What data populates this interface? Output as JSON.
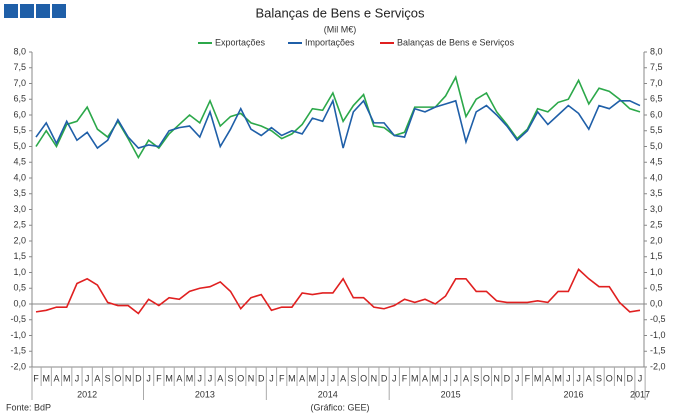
{
  "chart_data": {
    "type": "line",
    "title": "Balanças de Bens e Serviços",
    "subtitle": "(Mil M€)",
    "source": "Fonte: BdP",
    "credit": "(Gráfico: GEE)",
    "groups": [
      {
        "label": "2012",
        "categories": [
          "F",
          "M",
          "A",
          "M",
          "J",
          "J",
          "A",
          "S",
          "O",
          "N",
          "D"
        ]
      },
      {
        "label": "2013",
        "categories": [
          "J",
          "F",
          "M",
          "A",
          "M",
          "J",
          "J",
          "A",
          "S",
          "O",
          "N",
          "D"
        ]
      },
      {
        "label": "2014",
        "categories": [
          "J",
          "F",
          "M",
          "A",
          "M",
          "J",
          "J",
          "A",
          "S",
          "O",
          "N",
          "D"
        ]
      },
      {
        "label": "2015",
        "categories": [
          "J",
          "F",
          "M",
          "A",
          "M",
          "J",
          "J",
          "A",
          "S",
          "O",
          "N",
          "D"
        ]
      },
      {
        "label": "2016",
        "categories": [
          "J",
          "F",
          "M",
          "A",
          "M",
          "J",
          "J",
          "A",
          "S",
          "O",
          "N",
          "D"
        ]
      },
      {
        "label": "2017",
        "categories": [
          "J"
        ]
      }
    ],
    "series": [
      {
        "name": "Exportações",
        "color": "#2ca84a",
        "values": [
          5.0,
          5.5,
          5.0,
          5.7,
          5.8,
          6.25,
          5.55,
          5.3,
          5.8,
          5.25,
          4.65,
          5.2,
          4.95,
          5.4,
          5.7,
          6.0,
          5.75,
          6.45,
          5.65,
          5.95,
          6.05,
          5.75,
          5.65,
          5.5,
          5.25,
          5.4,
          5.7,
          6.2,
          6.15,
          6.7,
          5.8,
          6.3,
          6.65,
          5.65,
          5.6,
          5.35,
          5.45,
          6.25,
          6.25,
          6.25,
          6.6,
          7.2,
          5.95,
          6.5,
          6.7,
          6.1,
          5.7,
          5.25,
          5.55,
          6.2,
          6.1,
          6.4,
          6.5,
          7.1,
          6.35,
          6.85,
          6.75,
          6.5,
          6.2,
          6.1
        ]
      },
      {
        "name": "Importações",
        "color": "#1f5fa8",
        "values": [
          5.3,
          5.75,
          5.1,
          5.8,
          5.2,
          5.45,
          4.95,
          5.2,
          5.85,
          5.3,
          4.95,
          5.05,
          5.0,
          5.5,
          5.6,
          5.65,
          5.3,
          6.1,
          5.0,
          5.55,
          6.2,
          5.55,
          5.35,
          5.6,
          5.35,
          5.5,
          5.4,
          5.9,
          5.8,
          6.45,
          4.95,
          6.1,
          6.45,
          5.75,
          5.75,
          5.35,
          5.3,
          6.2,
          6.1,
          6.25,
          6.35,
          6.45,
          5.15,
          6.1,
          6.3,
          6.0,
          5.65,
          5.2,
          5.5,
          6.1,
          5.7,
          6.0,
          6.3,
          6.05,
          5.55,
          6.3,
          6.2,
          6.45,
          6.45,
          6.3
        ]
      },
      {
        "name": "Balanças de Bens e Serviços",
        "color": "#e02020",
        "values": [
          -0.25,
          -0.2,
          -0.1,
          -0.1,
          0.65,
          0.8,
          0.6,
          0.05,
          -0.05,
          -0.05,
          -0.3,
          0.15,
          -0.05,
          0.2,
          0.15,
          0.4,
          0.5,
          0.55,
          0.7,
          0.4,
          -0.15,
          0.2,
          0.3,
          -0.2,
          -0.1,
          -0.1,
          0.35,
          0.3,
          0.35,
          0.35,
          0.8,
          0.2,
          0.2,
          -0.1,
          -0.15,
          -0.05,
          0.15,
          0.05,
          0.15,
          0.0,
          0.25,
          0.8,
          0.8,
          0.4,
          0.4,
          0.1,
          0.05,
          0.05,
          0.05,
          0.1,
          0.05,
          0.4,
          0.4,
          1.1,
          0.8,
          0.55,
          0.55,
          0.05,
          -0.25,
          -0.2
        ]
      }
    ],
    "ylim": [
      -2,
      8
    ],
    "yticks": [
      {
        "value": -2,
        "label": "-2,0"
      },
      {
        "value": -1.5,
        "label": "-1,5"
      },
      {
        "value": -1,
        "label": "-1,0"
      },
      {
        "value": -0.5,
        "label": "-0,5"
      },
      {
        "value": 0,
        "label": "0,0"
      },
      {
        "value": 0.5,
        "label": "0,5"
      },
      {
        "value": 1,
        "label": "1,0"
      },
      {
        "value": 1.5,
        "label": "1,5"
      },
      {
        "value": 2,
        "label": "2,0"
      },
      {
        "value": 2.5,
        "label": "2,5"
      },
      {
        "value": 3,
        "label": "3,0"
      },
      {
        "value": 3.5,
        "label": "3,5"
      },
      {
        "value": 4,
        "label": "4,0"
      },
      {
        "value": 4.5,
        "label": "4,5"
      },
      {
        "value": 5,
        "label": "5,0"
      },
      {
        "value": 5.5,
        "label": "5,5"
      },
      {
        "value": 6,
        "label": "6,0"
      },
      {
        "value": 6.5,
        "label": "6,5"
      },
      {
        "value": 7,
        "label": "7,0"
      },
      {
        "value": 7.5,
        "label": "7,5"
      },
      {
        "value": 8,
        "label": "8,0"
      }
    ],
    "y2lim": [
      -2,
      8
    ],
    "y2ticks": [
      {
        "value": -2,
        "label": "-2,0"
      },
      {
        "value": -1.5,
        "label": "-1,5"
      },
      {
        "value": -1,
        "label": "-1,0"
      },
      {
        "value": -0.5,
        "label": "-0,5"
      },
      {
        "value": 0,
        "label": "0,0"
      },
      {
        "value": 0.5,
        "label": "0,5"
      },
      {
        "value": 1,
        "label": "1,0"
      },
      {
        "value": 1.5,
        "label": "1,5"
      },
      {
        "value": 2,
        "label": "2,0"
      },
      {
        "value": 2.5,
        "label": "2,5"
      },
      {
        "value": 3,
        "label": "3,0"
      },
      {
        "value": 3.5,
        "label": "3,5"
      },
      {
        "value": 4,
        "label": "4,0"
      },
      {
        "value": 4.5,
        "label": "4,5"
      },
      {
        "value": 5,
        "label": "5,0"
      },
      {
        "value": 5.5,
        "label": "5,5"
      },
      {
        "value": 6,
        "label": "6,0"
      },
      {
        "value": 6.5,
        "label": "6,5"
      },
      {
        "value": 7,
        "label": "7,0"
      },
      {
        "value": 7.5,
        "label": "7,5"
      },
      {
        "value": 8,
        "label": "8,0"
      }
    ],
    "grid": false,
    "legend": "top"
  }
}
